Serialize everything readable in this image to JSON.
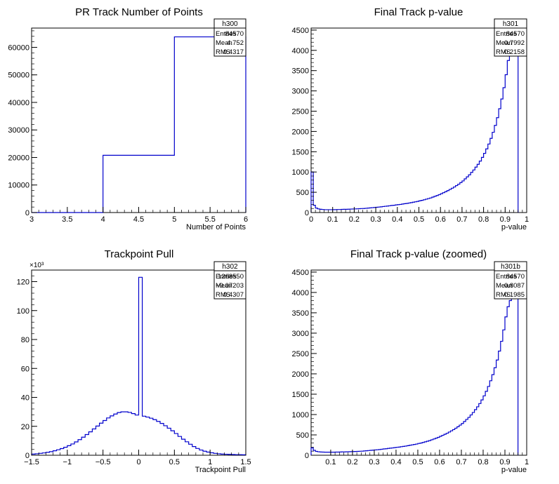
{
  "chart_data": [
    {
      "type": "histogram",
      "title": "PR Track Number of Points",
      "xlabel": "Number of Points",
      "ylabel": "",
      "xlim": [
        3,
        6
      ],
      "ylim": [
        0,
        67000
      ],
      "xticks": [
        "3",
        "3.5",
        "4",
        "4.5",
        "5",
        "5.5",
        "6"
      ],
      "xtick_values": [
        3,
        3.5,
        4,
        4.5,
        5,
        5.5,
        6
      ],
      "yticks": [
        "0",
        "10000",
        "20000",
        "30000",
        "40000",
        "50000",
        "60000"
      ],
      "ytick_values": [
        0,
        10000,
        20000,
        30000,
        40000,
        50000,
        60000
      ],
      "y_multiplier": "",
      "bin_edges": [
        3,
        4,
        5,
        6
      ],
      "values": [
        0,
        20800,
        63800
      ],
      "stats": {
        "name": "h300",
        "entries_label": "Entries",
        "entries": "84570",
        "mean_label": "Mean",
        "mean": "4.752",
        "rms_label": "RMS",
        "rms": "0.4317"
      }
    },
    {
      "type": "histogram",
      "title": "Final Track p-value",
      "xlabel": "p-value",
      "ylabel": "",
      "xlim": [
        0,
        1
      ],
      "ylim": [
        0,
        4550
      ],
      "xticks": [
        "0",
        "0.1",
        "0.2",
        "0.3",
        "0.4",
        "0.5",
        "0.6",
        "0.7",
        "0.8",
        "0.9",
        "1"
      ],
      "xtick_values": [
        0,
        0.1,
        0.2,
        0.3,
        0.4,
        0.5,
        0.6,
        0.7,
        0.8,
        0.9,
        1
      ],
      "yticks": [
        "0",
        "500",
        "1000",
        "1500",
        "2000",
        "2500",
        "3000",
        "3500",
        "4000",
        "4500"
      ],
      "ytick_values": [
        0,
        500,
        1000,
        1500,
        2000,
        2500,
        3000,
        3500,
        4000,
        4500
      ],
      "y_multiplier": "",
      "bin_edges": [
        0,
        0.01,
        0.02,
        0.03,
        0.04,
        0.05,
        0.06,
        0.07,
        0.08,
        0.09,
        0.1,
        0.11,
        0.12,
        0.13,
        0.14,
        0.15,
        0.16,
        0.17,
        0.18,
        0.19,
        0.2,
        0.21,
        0.22,
        0.23,
        0.24,
        0.25,
        0.26,
        0.27,
        0.28,
        0.29,
        0.3,
        0.31,
        0.32,
        0.33,
        0.34,
        0.35,
        0.36,
        0.37,
        0.38,
        0.39,
        0.4,
        0.41,
        0.42,
        0.43,
        0.44,
        0.45,
        0.46,
        0.47,
        0.48,
        0.49,
        0.5,
        0.51,
        0.52,
        0.53,
        0.54,
        0.55,
        0.56,
        0.57,
        0.58,
        0.59,
        0.6,
        0.61,
        0.62,
        0.63,
        0.64,
        0.65,
        0.66,
        0.67,
        0.68,
        0.69,
        0.7,
        0.71,
        0.72,
        0.73,
        0.74,
        0.75,
        0.76,
        0.77,
        0.78,
        0.79,
        0.8,
        0.81,
        0.82,
        0.83,
        0.84,
        0.85,
        0.86,
        0.87,
        0.88,
        0.89,
        0.9,
        0.91,
        0.92,
        0.93,
        0.94,
        0.95,
        0.96
      ],
      "values": [
        1000,
        180,
        110,
        90,
        80,
        75,
        70,
        70,
        70,
        70,
        72,
        72,
        75,
        75,
        78,
        80,
        80,
        82,
        85,
        88,
        90,
        92,
        95,
        98,
        100,
        105,
        110,
        115,
        120,
        125,
        130,
        135,
        140,
        148,
        155,
        160,
        168,
        175,
        180,
        188,
        195,
        200,
        210,
        218,
        225,
        235,
        245,
        255,
        265,
        275,
        290,
        300,
        315,
        330,
        345,
        360,
        380,
        400,
        420,
        440,
        465,
        490,
        515,
        540,
        570,
        600,
        630,
        665,
        700,
        740,
        780,
        830,
        880,
        930,
        990,
        1050,
        1120,
        1190,
        1270,
        1360,
        1460,
        1570,
        1690,
        1830,
        1980,
        2150,
        2340,
        2560,
        2800,
        3080,
        3400,
        3750,
        3900,
        3900,
        3900,
        3900
      ]
    },
    {
      "type": "histogram",
      "title": "Trackpoint Pull",
      "xlabel": "Trackpoint Pull",
      "ylabel": "",
      "xlim": [
        -1.5,
        1.5
      ],
      "ylim": [
        0,
        128
      ],
      "xticks": [
        "−1.5",
        "−1",
        "−0.5",
        "0",
        "0.5",
        "1",
        "1.5"
      ],
      "xtick_values": [
        -1.5,
        -1,
        -0.5,
        0,
        0.5,
        1,
        1.5
      ],
      "yticks": [
        "0",
        "20",
        "40",
        "60",
        "80",
        "100",
        "120"
      ],
      "ytick_values": [
        0,
        20,
        40,
        60,
        80,
        100,
        120
      ],
      "y_multiplier": "×10³",
      "bin_edges": [
        -1.5,
        -1.45,
        -1.4,
        -1.35,
        -1.3,
        -1.25,
        -1.2,
        -1.15,
        -1.1,
        -1.05,
        -1,
        -0.95,
        -0.9,
        -0.85,
        -0.8,
        -0.75,
        -0.7,
        -0.65,
        -0.6,
        -0.55,
        -0.5,
        -0.45,
        -0.4,
        -0.35,
        -0.3,
        -0.25,
        -0.2,
        -0.15,
        -0.1,
        -0.05,
        0,
        0.05,
        0.1,
        0.15,
        0.2,
        0.25,
        0.3,
        0.35,
        0.4,
        0.45,
        0.5,
        0.55,
        0.6,
        0.65,
        0.7,
        0.75,
        0.8,
        0.85,
        0.9,
        0.95,
        1,
        1.05,
        1.1,
        1.15,
        1.2,
        1.25,
        1.3,
        1.35,
        1.4,
        1.45,
        1.5
      ],
      "values": [
        0.8,
        1.0,
        1.3,
        1.6,
        2.0,
        2.5,
        3.1,
        3.8,
        4.6,
        5.5,
        6.6,
        7.8,
        9.2,
        10.8,
        12.5,
        14.3,
        16.2,
        18.2,
        20.2,
        22.2,
        24.0,
        25.8,
        27.2,
        28.5,
        29.5,
        30.0,
        30.0,
        29.6,
        28.8,
        27.8,
        123.0,
        27.0,
        26.4,
        25.6,
        24.6,
        23.4,
        22.0,
        20.4,
        18.7,
        16.9,
        15.0,
        13.0,
        11.1,
        9.3,
        7.6,
        6.0,
        4.7,
        3.6,
        2.8,
        2.2,
        1.7,
        1.3,
        1.0,
        0.8,
        0.7,
        0.6,
        0.5,
        0.4,
        0.4,
        0.3
      ],
      "stats": {
        "name": "h302",
        "entries_label": "Entries",
        "entries": "1268550",
        "mean_label": "Mean",
        "mean": "−0.07203",
        "rms_label": "RMS",
        "rms": "0.4307"
      }
    },
    {
      "type": "histogram",
      "title": "Final Track p-value (zoomed)",
      "xlabel": "p-value",
      "ylabel": "",
      "xlim": [
        0.01,
        1
      ],
      "ylim": [
        0,
        4550
      ],
      "xticks": [
        "0.1",
        "0.2",
        "0.3",
        "0.4",
        "0.5",
        "0.6",
        "0.7",
        "0.8",
        "0.9",
        "1"
      ],
      "xtick_values": [
        0.1,
        0.2,
        0.3,
        0.4,
        0.5,
        0.6,
        0.7,
        0.8,
        0.9,
        1
      ],
      "yticks": [
        "0",
        "500",
        "1000",
        "1500",
        "2000",
        "2500",
        "3000",
        "3500",
        "4000",
        "4500"
      ],
      "ytick_values": [
        0,
        500,
        1000,
        1500,
        2000,
        2500,
        3000,
        3500,
        4000,
        4500
      ],
      "y_multiplier": "",
      "bin_edges": [
        0.01,
        0.02,
        0.03,
        0.04,
        0.05,
        0.06,
        0.07,
        0.08,
        0.09,
        0.1,
        0.11,
        0.12,
        0.13,
        0.14,
        0.15,
        0.16,
        0.17,
        0.18,
        0.19,
        0.2,
        0.21,
        0.22,
        0.23,
        0.24,
        0.25,
        0.26,
        0.27,
        0.28,
        0.29,
        0.3,
        0.31,
        0.32,
        0.33,
        0.34,
        0.35,
        0.36,
        0.37,
        0.38,
        0.39,
        0.4,
        0.41,
        0.42,
        0.43,
        0.44,
        0.45,
        0.46,
        0.47,
        0.48,
        0.49,
        0.5,
        0.51,
        0.52,
        0.53,
        0.54,
        0.55,
        0.56,
        0.57,
        0.58,
        0.59,
        0.6,
        0.61,
        0.62,
        0.63,
        0.64,
        0.65,
        0.66,
        0.67,
        0.68,
        0.69,
        0.7,
        0.71,
        0.72,
        0.73,
        0.74,
        0.75,
        0.76,
        0.77,
        0.78,
        0.79,
        0.8,
        0.81,
        0.82,
        0.83,
        0.84,
        0.85,
        0.86,
        0.87,
        0.88,
        0.89,
        0.9,
        0.91,
        0.92,
        0.93,
        0.94,
        0.95,
        0.96
      ],
      "values": [
        180,
        120,
        95,
        85,
        80,
        78,
        75,
        75,
        75,
        76,
        76,
        78,
        78,
        80,
        82,
        82,
        84,
        86,
        88,
        90,
        92,
        95,
        98,
        100,
        105,
        110,
        115,
        120,
        125,
        130,
        135,
        140,
        148,
        155,
        160,
        168,
        175,
        180,
        188,
        195,
        200,
        210,
        218,
        225,
        235,
        245,
        255,
        265,
        275,
        290,
        300,
        315,
        330,
        345,
        360,
        380,
        400,
        420,
        440,
        465,
        490,
        515,
        540,
        570,
        600,
        630,
        665,
        700,
        740,
        780,
        830,
        880,
        930,
        990,
        1050,
        1120,
        1190,
        1270,
        1360,
        1460,
        1570,
        1690,
        1830,
        1980,
        2150,
        2340,
        2560,
        2800,
        3080,
        3400,
        3650,
        3800,
        3850,
        3850,
        3850
      ],
      "stats": {
        "name": "h301b",
        "entries_label": "Entries",
        "entries": "84570",
        "mean_label": "Mean",
        "mean": "0.8087",
        "rms_label": "RMS",
        "rms": "0.1985"
      }
    }
  ],
  "stats_boxes": [
    {
      "name": "h300",
      "entries_label": "Entries",
      "entries": "84570",
      "mean_label": "Mean",
      "mean": "4.752",
      "rms_label": "RMS",
      "rms": "0.4317"
    },
    {
      "name": "h301",
      "entries_label": "Entries",
      "entries": "84570",
      "mean_label": "Mean",
      "mean": "0.7992",
      "rms_label": "RMS",
      "rms": "0.2158"
    },
    {
      "name": "h302",
      "entries_label": "Entries",
      "entries": "1268550",
      "mean_label": "Mean",
      "mean": "−0.07203",
      "rms_label": "RMS",
      "rms": "0.4307"
    },
    {
      "name": "h301b",
      "entries_label": "Entries",
      "entries": "84570",
      "mean_label": "Mean",
      "mean": "0.8087",
      "rms_label": "RMS",
      "rms": "0.1985"
    }
  ],
  "colors": {
    "line": "#0000cc",
    "axis": "#000000",
    "background": "#ffffff"
  }
}
